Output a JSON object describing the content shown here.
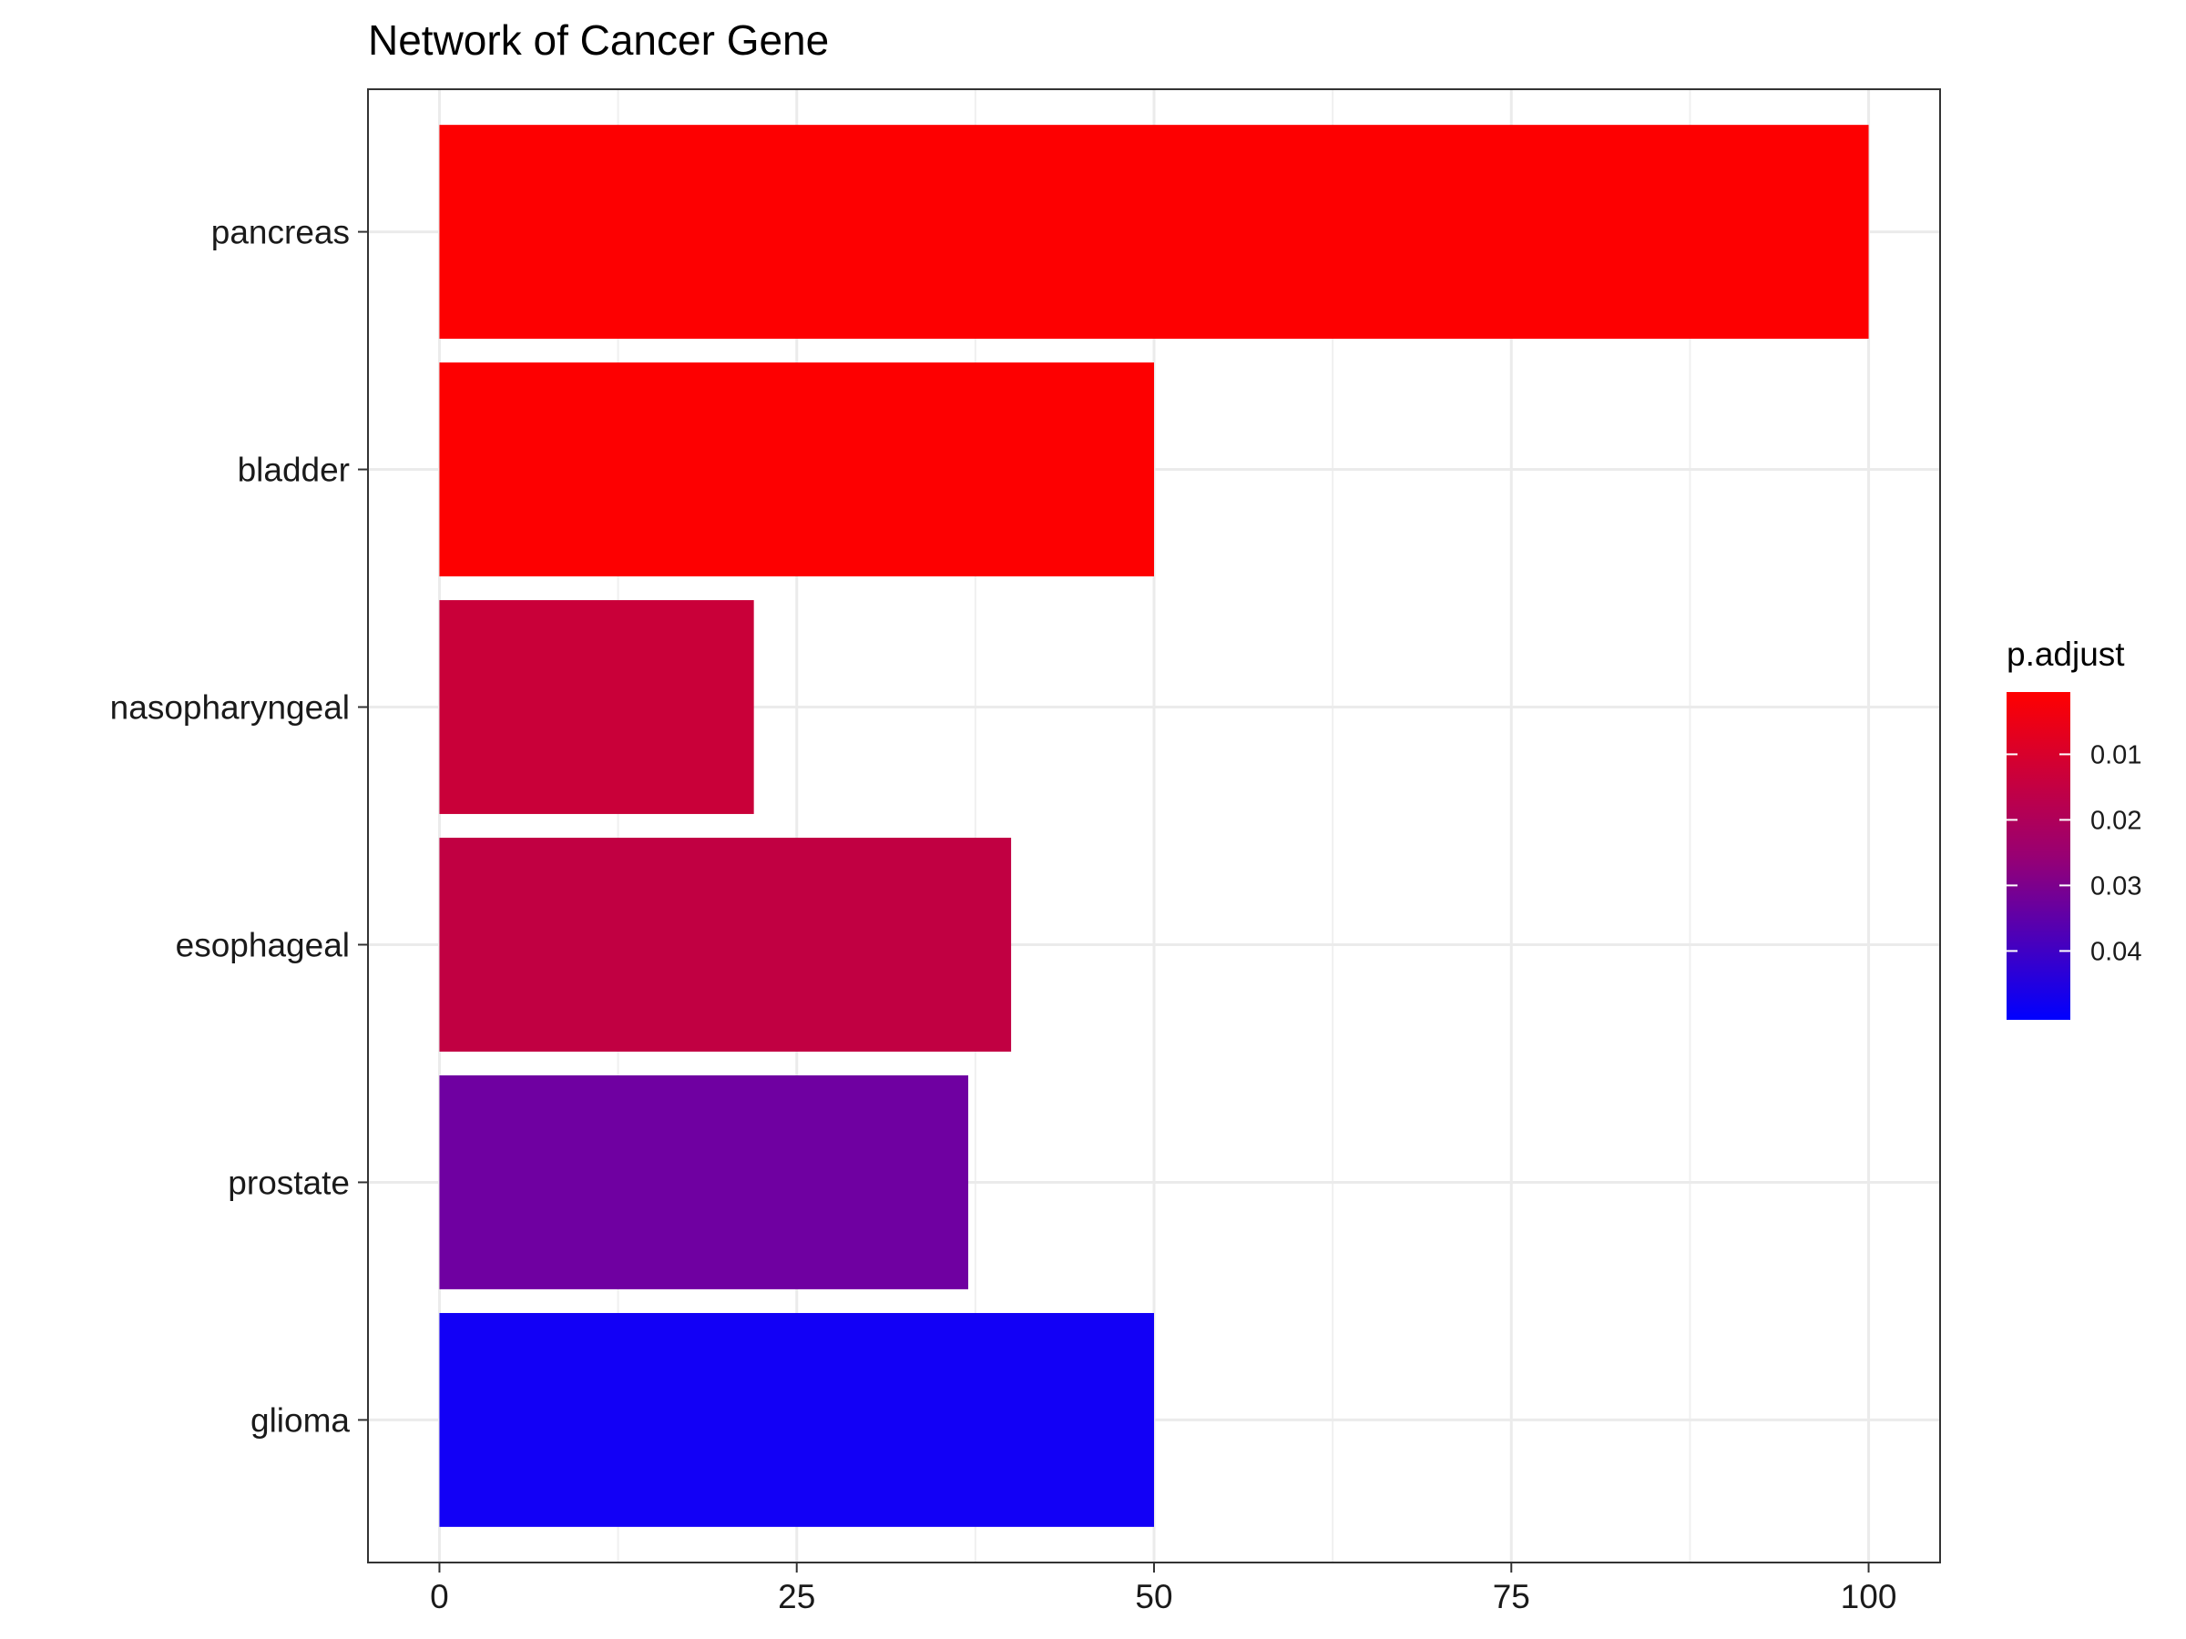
{
  "chart_data": {
    "type": "bar",
    "orientation": "horizontal",
    "title": "Network of Cancer Gene",
    "xlabel": "",
    "ylabel": "",
    "categories": [
      "pancreas",
      "bladder",
      "nasopharyngeal",
      "esophageal",
      "prostate",
      "glioma"
    ],
    "values": [
      100,
      50,
      22,
      40,
      37,
      50
    ],
    "p_adjust": [
      0.001,
      0.001,
      0.014,
      0.016,
      0.034,
      0.049
    ],
    "xlim": [
      -5,
      105
    ],
    "x_ticks": [
      0,
      25,
      50,
      75,
      100
    ],
    "x_tick_labels": [
      "0",
      "25",
      "50",
      "75",
      "100"
    ],
    "grid": true,
    "legend": {
      "title": "p.adjust",
      "placement": "right",
      "range": [
        0.0005,
        0.0505
      ],
      "ticks": [
        0.01,
        0.02,
        0.03,
        0.04
      ],
      "tick_labels": [
        "0.01",
        "0.02",
        "0.03",
        "0.04"
      ],
      "low_color": "#ff0000",
      "high_color": "#0000ff"
    }
  }
}
